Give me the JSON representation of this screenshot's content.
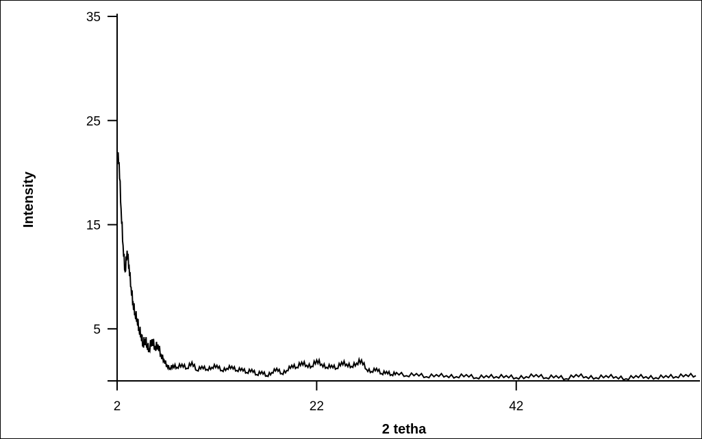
{
  "chart_data": {
    "type": "line",
    "title": "",
    "xlabel": "2 tetha",
    "ylabel": "Intensity",
    "xlim": [
      2,
      60
    ],
    "ylim": [
      0,
      35
    ],
    "x_ticks": [
      2,
      22,
      42
    ],
    "y_ticks": [
      5,
      15,
      25,
      35
    ],
    "grid": false,
    "legend": "none",
    "line_color": "#000000",
    "series": [
      {
        "x": [
          2.0,
          2.2,
          2.4,
          2.6,
          2.8,
          3.0,
          3.2,
          3.4,
          3.6,
          3.8,
          4.0,
          4.2,
          4.4,
          4.6,
          4.8,
          5.0,
          5.2,
          5.5,
          5.8,
          6.1,
          6.4,
          6.7,
          7.0,
          7.3,
          7.6,
          8.0,
          8.5,
          9.0,
          9.5,
          10.0,
          10.5,
          11.0,
          11.5,
          12.0,
          12.5,
          13.0,
          13.5,
          14.0,
          14.5,
          15.0,
          15.5,
          16.0,
          16.5,
          17.0,
          17.5,
          18.0,
          18.5,
          19.0,
          19.5,
          20.0,
          20.5,
          21.0,
          21.5,
          22.0,
          22.5,
          23.0,
          23.5,
          24.0,
          24.5,
          25.0,
          25.5,
          26.0,
          26.5,
          27.0,
          27.5,
          28.0,
          28.5,
          29.0,
          29.5,
          30.0,
          31.0,
          32.0,
          33.0,
          34.0,
          35.0,
          36.0,
          37.0,
          38.0,
          39.0,
          40.0,
          41.0,
          42.0,
          43.0,
          44.0,
          45.0,
          46.0,
          47.0,
          48.0,
          49.0,
          50.0,
          51.0,
          52.0,
          53.0,
          54.0,
          55.0,
          56.0,
          57.0,
          58.0,
          59.0,
          60.0
        ],
        "y": [
          22.0,
          21.0,
          16.5,
          13.0,
          10.5,
          12.5,
          11.0,
          9.0,
          7.5,
          6.5,
          6.0,
          5.0,
          4.5,
          3.5,
          4.0,
          3.5,
          3.0,
          4.0,
          3.2,
          3.5,
          2.5,
          2.0,
          1.5,
          1.2,
          1.5,
          1.3,
          1.6,
          1.2,
          1.8,
          1.0,
          1.4,
          1.1,
          1.3,
          1.5,
          1.0,
          1.2,
          1.4,
          1.0,
          1.2,
          0.8,
          1.1,
          0.6,
          0.9,
          0.5,
          0.8,
          1.2,
          0.7,
          1.0,
          1.5,
          1.3,
          1.8,
          1.5,
          1.4,
          2.0,
          1.6,
          1.3,
          1.5,
          1.2,
          1.8,
          1.6,
          1.4,
          1.7,
          2.0,
          1.1,
          0.9,
          1.2,
          0.7,
          0.9,
          0.6,
          0.8,
          0.5,
          0.7,
          0.4,
          0.6,
          0.5,
          0.4,
          0.6,
          0.3,
          0.5,
          0.4,
          0.5,
          0.3,
          0.4,
          0.6,
          0.3,
          0.5,
          0.2,
          0.6,
          0.4,
          0.3,
          0.5,
          0.4,
          0.2,
          0.5,
          0.4,
          0.3,
          0.5,
          0.4,
          0.6,
          0.5
        ]
      }
    ]
  }
}
